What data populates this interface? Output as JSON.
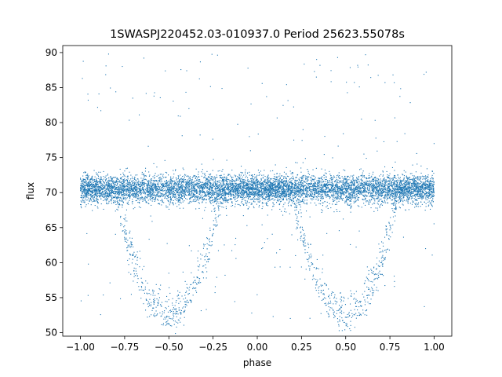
{
  "chart_data": {
    "type": "scatter",
    "title": "1SWASPJ220452.03-010937.0 Period 25623.55078s",
    "xlabel": "phase",
    "ylabel": "flux",
    "xlim": [
      -1.1,
      1.1
    ],
    "ylim": [
      49.5,
      91.0
    ],
    "xticks": [
      -1.0,
      -0.75,
      -0.5,
      -0.25,
      0.0,
      0.25,
      0.5,
      0.75,
      1.0
    ],
    "xtick_labels": [
      "−1.00",
      "−0.75",
      "−0.50",
      "−0.25",
      "0.00",
      "0.25",
      "0.50",
      "0.75",
      "1.00"
    ],
    "yticks": [
      50,
      55,
      60,
      65,
      70,
      75,
      80,
      85,
      90
    ],
    "ytick_labels": [
      "50",
      "55",
      "60",
      "65",
      "70",
      "75",
      "80",
      "85",
      "90"
    ],
    "grid": false,
    "legend": "none",
    "series": [
      {
        "color": "#1f77b4",
        "description_of_shape": {
          "baseline_flux": 70.5,
          "baseline_spread": 1.0,
          "eclipses": [
            {
              "center_phase": -0.5,
              "half_width_phase": 0.31,
              "min_flux": 52.0
            },
            {
              "center_phase": 0.5,
              "half_width_phase": 0.31,
              "min_flux": 52.0
            }
          ],
          "x_range": [
            -1.0,
            1.0
          ]
        }
      }
    ]
  }
}
